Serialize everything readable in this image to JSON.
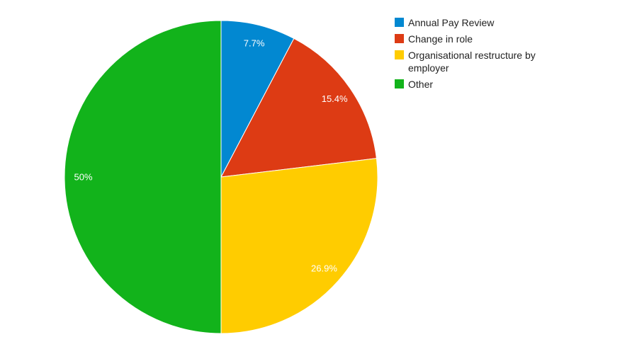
{
  "chart_data": {
    "type": "pie",
    "title": "",
    "legend_position": "right",
    "categories": [
      "Annual Pay Review",
      "Change in role",
      "Organisational restructure by employer",
      "Other"
    ],
    "values": [
      7.7,
      15.4,
      26.9,
      50
    ],
    "value_labels": [
      "7.7%",
      "15.4%",
      "26.9%",
      "50%"
    ],
    "colors": [
      "#0288d1",
      "#dd3b14",
      "#ffcc00",
      "#12b31b"
    ]
  }
}
